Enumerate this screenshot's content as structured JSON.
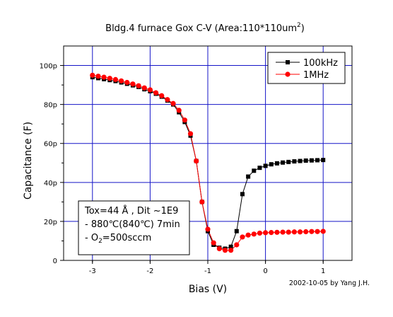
{
  "chart_data": {
    "type": "scatter",
    "title": "Bldg.4 furnace Gox C-V (Area:110*110um",
    "title_superscript": "2",
    "title_close": ")",
    "xlabel": "Bias (V)",
    "ylabel": "Capacitance (F)",
    "xlim": [
      -3.5,
      1.5
    ],
    "ylim": [
      0,
      110
    ],
    "x_ticks": [
      -3,
      -2,
      -1,
      0,
      1
    ],
    "x_tick_labels": [
      "-3",
      "-2",
      "-1",
      "0",
      "1"
    ],
    "y_ticks": [
      0,
      20,
      40,
      60,
      80,
      100
    ],
    "y_tick_labels": [
      "0",
      "20p",
      "40p",
      "60p",
      "80p",
      "100p"
    ],
    "grid": true,
    "legend_position": "top-right",
    "series": [
      {
        "name": "100kHz",
        "color": "#000000",
        "marker": "square",
        "x": [
          -3.0,
          -2.9,
          -2.8,
          -2.7,
          -2.6,
          -2.5,
          -2.4,
          -2.3,
          -2.2,
          -2.1,
          -2.0,
          -1.9,
          -1.8,
          -1.7,
          -1.6,
          -1.5,
          -1.4,
          -1.3,
          -1.2,
          -1.1,
          -1.0,
          -0.9,
          -0.8,
          -0.7,
          -0.6,
          -0.5,
          -0.4,
          -0.3,
          -0.2,
          -0.1,
          0.0,
          0.1,
          0.2,
          0.3,
          0.4,
          0.5,
          0.6,
          0.7,
          0.8,
          0.9,
          1.0
        ],
        "y": [
          94,
          93.5,
          93,
          92.5,
          92,
          91.3,
          90.6,
          89.8,
          89,
          87.8,
          86.8,
          85.5,
          84,
          82,
          80,
          76,
          71,
          64,
          51,
          30,
          15,
          8,
          6.5,
          6,
          7,
          15,
          34,
          43,
          46,
          47.5,
          48.5,
          49.3,
          49.8,
          50.2,
          50.5,
          50.8,
          51,
          51.2,
          51.3,
          51.4,
          51.5
        ]
      },
      {
        "name": "1MHz",
        "color": "#ff0000",
        "marker": "circle",
        "x": [
          -3.0,
          -2.9,
          -2.8,
          -2.7,
          -2.6,
          -2.5,
          -2.4,
          -2.3,
          -2.2,
          -2.1,
          -2.0,
          -1.9,
          -1.8,
          -1.7,
          -1.6,
          -1.5,
          -1.4,
          -1.3,
          -1.2,
          -1.1,
          -1.0,
          -0.9,
          -0.8,
          -0.7,
          -0.6,
          -0.5,
          -0.4,
          -0.3,
          -0.2,
          -0.1,
          0.0,
          0.1,
          0.2,
          0.3,
          0.4,
          0.5,
          0.6,
          0.7,
          0.8,
          0.9,
          1.0
        ],
        "y": [
          95,
          94.5,
          94,
          93.4,
          92.8,
          92.1,
          91.3,
          90.5,
          89.6,
          88.5,
          87.5,
          86,
          84.5,
          82.5,
          80.5,
          77,
          72,
          65,
          51,
          30,
          16,
          9,
          6,
          5.2,
          5.2,
          8,
          12,
          13,
          13.5,
          14,
          14.2,
          14.3,
          14.4,
          14.5,
          14.5,
          14.6,
          14.6,
          14.7,
          14.8,
          14.8,
          14.9
        ]
      }
    ],
    "annotation": {
      "line1": "Tox=44 Å , Dit ~1E9",
      "line2": "- 880℃(840℃) 7min",
      "line3_prefix": "- O",
      "line3_sub": "2",
      "line3_suffix": "=500sccm"
    },
    "credit": "2002-10-05 by Yang J.H."
  }
}
